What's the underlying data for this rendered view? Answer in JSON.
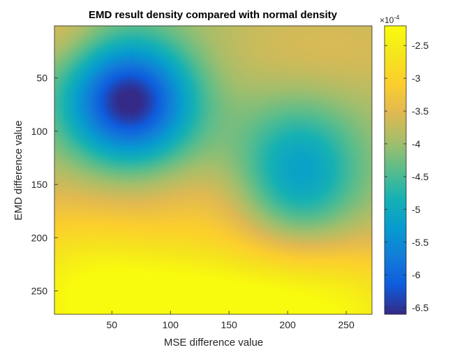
{
  "chart_data": {
    "type": "heatmap",
    "title": "EMD result density compared with normal density",
    "xlabel": "MSE difference value",
    "ylabel": "EMD difference value",
    "xlim": [
      1,
      272
    ],
    "ylim": [
      1,
      272
    ],
    "y_direction": "reverse",
    "x_ticks": [
      50,
      100,
      150,
      200,
      250
    ],
    "y_ticks": [
      50,
      100,
      150,
      200,
      250
    ],
    "colormap": "parula",
    "grid": false,
    "colorbar": {
      "location": "right",
      "exponent_label": "×10",
      "exponent_value": "-4",
      "range": [
        -6.6,
        -2.2
      ],
      "ticks": [
        "-2.5",
        "-3",
        "-3.5",
        "-4",
        "-4.5",
        "-5",
        "-5.5",
        "-6",
        "-6.5"
      ],
      "tick_values": [
        -2.5,
        -3,
        -3.5,
        -4,
        -4.5,
        -5,
        -5.5,
        -6,
        -6.5
      ]
    },
    "field": {
      "units": "x1e-4",
      "base": -3.9,
      "features": [
        {
          "x": 65,
          "y": 72,
          "sx": 38,
          "sy": 40,
          "amp": -2.8
        },
        {
          "x": 210,
          "y": 140,
          "sx": 36,
          "sy": 45,
          "amp": -1.35
        },
        {
          "x": 120,
          "y": 272,
          "sx": 85,
          "sy": 48,
          "amp": 1.7
        },
        {
          "x": 255,
          "y": 272,
          "sx": 70,
          "sy": 50,
          "amp": 1.1
        },
        {
          "x": 15,
          "y": 240,
          "sx": 60,
          "sy": 60,
          "amp": 1.0
        },
        {
          "x": 230,
          "y": 25,
          "sx": 70,
          "sy": 35,
          "amp": 0.35
        },
        {
          "x": 5,
          "y": 5,
          "sx": 30,
          "sy": 30,
          "amp": 0.4
        },
        {
          "x": 135,
          "y": 170,
          "sx": 40,
          "sy": 35,
          "amp": 0.35
        }
      ]
    }
  }
}
